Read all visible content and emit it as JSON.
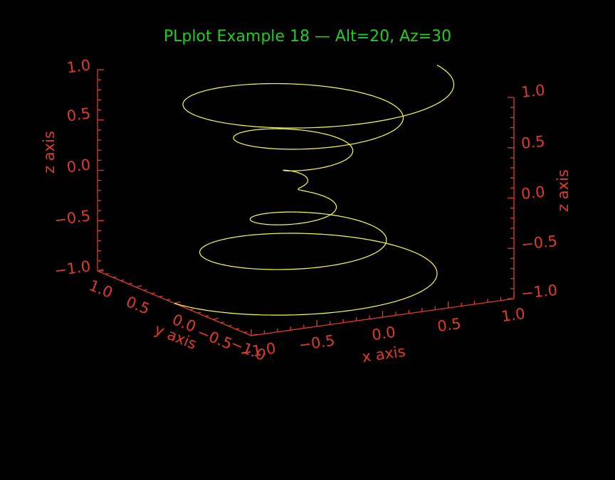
{
  "chart_data": {
    "type": "line",
    "projection": "3d",
    "title": "PLplot Example 18 — Alt=20, Az=30",
    "altitude": 20,
    "azimuth": 30,
    "xlabel": "x axis",
    "ylabel": "y axis",
    "zlabel": "z axis",
    "xlim": [
      -1.0,
      1.0
    ],
    "ylim": [
      -1.0,
      1.0
    ],
    "zlim": [
      -1.0,
      1.0
    ],
    "x_ticks": [
      "−1.0",
      "−0.5",
      "0.0",
      "0.5",
      "1.0"
    ],
    "y_ticks": [
      "1.0",
      "0.5",
      "0.0",
      "−0.5",
      "−1.0"
    ],
    "z_ticks_left": [
      "1.0",
      "0.5",
      "0.0",
      "−0.5",
      "−1.0"
    ],
    "z_ticks_right": [
      "1.0",
      "0.5",
      "0.0",
      "−0.5"
    ],
    "z_ticks_right_bottom": "−1.0",
    "series": [
      {
        "curve": "z from -1 to 1; r = sqrt(1 - z^2)... helix x = z*cos(2*pi*6*i/N), y = z*sin(2*pi*6*i/N)",
        "color": "#ffff44"
      }
    ],
    "colors": {
      "axes": "#e03a2a",
      "title": "#22cc22",
      "line": "#ffff44",
      "background": "#000000"
    }
  }
}
